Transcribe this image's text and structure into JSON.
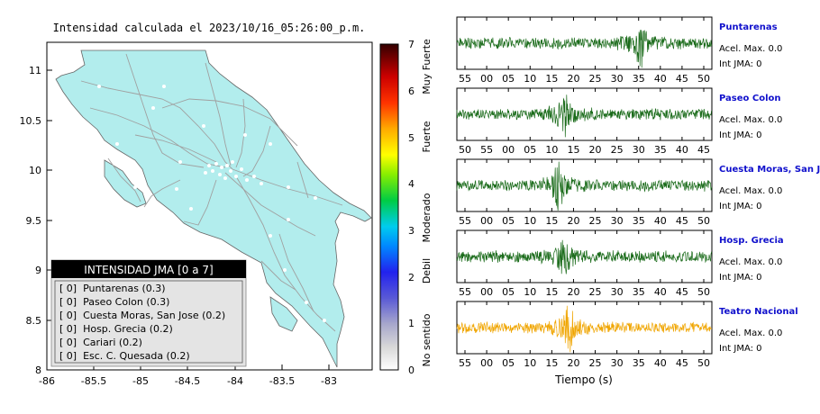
{
  "map": {
    "title": "Intensidad calculada el 2023/10/16_05:26:00_p.m.",
    "x_ticks": [
      "-86",
      "-85.5",
      "-85",
      "-84.5",
      "-84",
      "-83.5",
      "-83"
    ],
    "y_ticks": [
      "11",
      "10.5",
      "10",
      "9.5",
      "9",
      "8.5",
      "8"
    ]
  },
  "colorbar": {
    "ticks": [
      "0",
      "1",
      "2",
      "3",
      "4",
      "5",
      "6",
      "7"
    ],
    "labels": [
      "No sentido",
      "Debil",
      "Moderado",
      "Fuerte",
      "Muy Fuerte"
    ]
  },
  "legend": {
    "header": "INTENSIDAD JMA [0 a 7]",
    "items": [
      "[ 0]  Puntarenas (0.3)",
      "[ 0]  Paseo Colon (0.3)",
      "[ 0]  Cuesta Moras, San Jose (0.2)",
      "[ 0]  Hosp. Grecia (0.2)",
      "[ 0]  Cariari (0.2)",
      "[ 0]  Esc. C. Quesada (0.2)"
    ]
  },
  "stations": [
    {
      "name": "Puntarenas",
      "accel": "Acel. Max. 0.0",
      "int": "Int JMA: 0",
      "ticks": [
        "55",
        "00",
        "05",
        "10",
        "15",
        "20",
        "25",
        "30",
        "35",
        "40",
        "45",
        "50"
      ],
      "color": "#1a6b1a"
    },
    {
      "name": "Paseo Colon",
      "accel": "Acel. Max. 0.0",
      "int": "Int JMA: 0",
      "ticks": [
        "50",
        "55",
        "00",
        "05",
        "10",
        "15",
        "20",
        "25",
        "30",
        "35",
        "40",
        "45"
      ],
      "color": "#1a6b1a"
    },
    {
      "name": "Cuesta Moras, San Jose",
      "accel": "Acel. Max. 0.0",
      "int": "Int JMA: 0",
      "ticks": [
        "55",
        "00",
        "05",
        "10",
        "15",
        "20",
        "25",
        "30",
        "35",
        "40",
        "45",
        "50"
      ],
      "color": "#1a6b1a"
    },
    {
      "name": "Hosp. Grecia",
      "accel": "Acel. Max. 0.0",
      "int": "Int JMA: 0",
      "ticks": [
        "55",
        "00",
        "05",
        "10",
        "15",
        "20",
        "25",
        "30",
        "35",
        "40",
        "45",
        "50"
      ],
      "color": "#1a6b1a"
    },
    {
      "name": "Teatro Nacional",
      "accel": "Acel. Max. 0.0",
      "int": "Int JMA: 0",
      "ticks": [
        "55",
        "00",
        "05",
        "10",
        "15",
        "20",
        "25",
        "30",
        "35",
        "40",
        "45",
        "50"
      ],
      "color": "#f0a500"
    }
  ],
  "xlabel": "Tiempo (s)"
}
